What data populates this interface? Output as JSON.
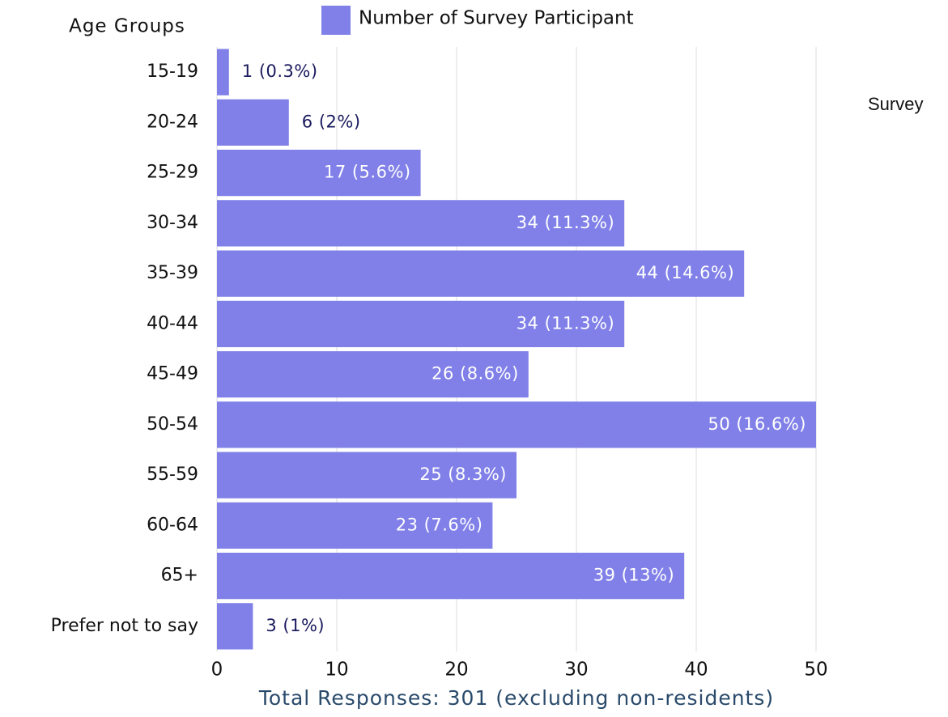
{
  "chart_data": {
    "type": "bar",
    "orientation": "horizontal",
    "y_axis_label": "Age Groups",
    "x_axis_label": "Total Responses: 301 (excluding non-residents)",
    "annotation": "Survey",
    "categories": [
      "15-19",
      "20-24",
      "25-29",
      "30-34",
      "35-39",
      "40-44",
      "45-49",
      "50-54",
      "55-59",
      "60-64",
      "65+",
      "Prefer not to say"
    ],
    "series": [
      {
        "name": "Number of Survey Participant",
        "color": "#8080e8",
        "values": [
          1,
          6,
          17,
          34,
          44,
          34,
          26,
          50,
          25,
          23,
          39,
          3
        ],
        "value_labels": [
          "1 (0.3%)",
          "6 (2%)",
          "17 (5.6%)",
          "34 (11.3%)",
          "44 (14.6%)",
          "34 (11.3%)",
          "26 (8.6%)",
          "50 (16.6%)",
          "25 (8.3%)",
          "23 (7.6%)",
          "39 (13%)",
          "3 (1%)"
        ]
      }
    ],
    "xlim": [
      0,
      50
    ],
    "xticks": [
      0,
      10,
      20,
      30,
      40,
      50
    ],
    "grid": true,
    "legend": "top"
  }
}
